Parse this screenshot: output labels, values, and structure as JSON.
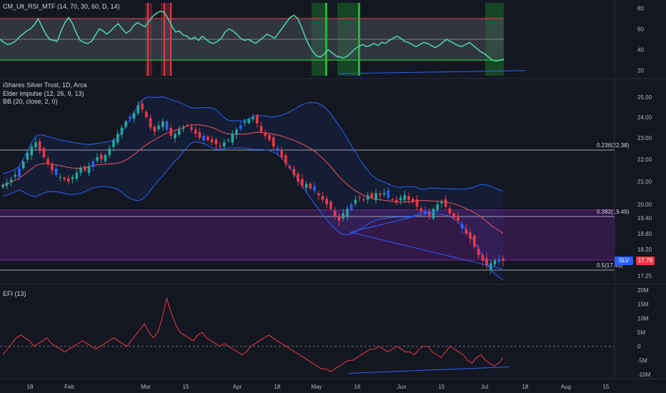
{
  "chart_data": [
    {
      "type": "line",
      "title": "CM_Ult_RSI_MTF (14, 70, 30, 60, D, 14)",
      "y_ticks": [
        "80",
        "60",
        "40",
        "20"
      ],
      "ylim": [
        15,
        85
      ],
      "bands": {
        "upper": 70,
        "middle": 50,
        "lower": 30
      },
      "colors": {
        "rsi": "#4dd0a5",
        "upper": "#f23645",
        "lower": "#1fc52f",
        "band_fill": "#4a4e5a"
      },
      "values": [
        50,
        47,
        45,
        46,
        48,
        52,
        55,
        58,
        60,
        64,
        70,
        62,
        55,
        50,
        49,
        48,
        58,
        66,
        71,
        65,
        56,
        49,
        47,
        46,
        48,
        54,
        60,
        58,
        55,
        58,
        62,
        65,
        60,
        56,
        58,
        63,
        66,
        64,
        62,
        67,
        72,
        75,
        77,
        76,
        70,
        63,
        57,
        58,
        54,
        53,
        50,
        52,
        49,
        53,
        50,
        47,
        46,
        48,
        51,
        57,
        60,
        58,
        55,
        51,
        49,
        50,
        48,
        46,
        49,
        52,
        55,
        53,
        51,
        56,
        61,
        66,
        71,
        73,
        70,
        62,
        52,
        44,
        38,
        34,
        33,
        36,
        40,
        37,
        34,
        33,
        32,
        34,
        37,
        41,
        43,
        45,
        43,
        44,
        46,
        44,
        47,
        46,
        49,
        51,
        53,
        51,
        48,
        47,
        45,
        43,
        45,
        47,
        46,
        44,
        42,
        44,
        47,
        50,
        48,
        46,
        44,
        43,
        45,
        47,
        44,
        41,
        38,
        36,
        33,
        30,
        29,
        30,
        31
      ]
    },
    {
      "type": "bar",
      "title": "iShares Silver Trust, 1D, Arca",
      "legend": [
        "Elder Impulse (12, 26, 9, 13)",
        "BB (20, close, 2, 0)"
      ],
      "y_ticks": [
        "25.00",
        "24.00",
        "23.00",
        "22.00",
        "21.00",
        "20.00",
        "19.40",
        "18.80",
        "18.20",
        "17.25"
      ],
      "fib_levels": [
        {
          "label": "0.236(22.38)",
          "value": 22.38
        },
        {
          "label": "0.382(19.49)",
          "value": 19.49
        },
        {
          "label": "0.5(17.43)",
          "value": 17.43
        }
      ],
      "last_price_symbol": "SLV",
      "last_price_label": "17.79",
      "colors": {
        "up": "#26a69a",
        "down": "#f23645",
        "neutral": "#2962ff",
        "bb": "#2962ff",
        "basis": "#f7525f",
        "zone": "#7b1fa2"
      },
      "closes": [
        20.85,
        20.95,
        21.1,
        21.3,
        21.6,
        21.9,
        22.3,
        22.6,
        22.8,
        22.4,
        22.1,
        21.8,
        21.5,
        21.3,
        21.2,
        21.1,
        21.0,
        21.2,
        21.4,
        21.6,
        21.5,
        21.7,
        21.9,
        22.1,
        22.0,
        22.2,
        22.5,
        22.9,
        23.2,
        23.5,
        23.8,
        24.0,
        24.2,
        24.6,
        24.4,
        24.0,
        23.5,
        23.3,
        23.6,
        23.8,
        23.4,
        23.1,
        23.2,
        23.4,
        23.5,
        23.6,
        23.4,
        23.2,
        23.0,
        23.1,
        22.9,
        22.8,
        22.7,
        22.6,
        22.8,
        22.9,
        23.2,
        23.4,
        23.6,
        23.8,
        23.9,
        24.0,
        23.7,
        23.3,
        23.1,
        22.9,
        22.6,
        22.4,
        22.1,
        21.8,
        21.6,
        21.3,
        21.0,
        20.8,
        20.9,
        20.7,
        20.6,
        20.4,
        20.2,
        20.0,
        19.8,
        19.5,
        19.3,
        19.6,
        19.8,
        20.0,
        20.2,
        20.3,
        20.2,
        20.4,
        20.3,
        20.5,
        20.4,
        20.5,
        20.3,
        20.2,
        20.1,
        20.3,
        20.4,
        20.2,
        20.1,
        19.9,
        19.7,
        19.6,
        19.5,
        19.8,
        20.0,
        20.1,
        19.9,
        19.6,
        19.4,
        19.3,
        19.0,
        18.8,
        18.6,
        18.3,
        18.0,
        17.8,
        17.6,
        17.7,
        17.8,
        17.75,
        17.79
      ]
    },
    {
      "type": "line",
      "title": "EFI (13)",
      "y_ticks": [
        "20M",
        "15M",
        "10M",
        "5M",
        "0",
        "-5M",
        "-10M"
      ],
      "ylim": [
        -11,
        21
      ],
      "colors": {
        "efi": "#f23645",
        "zero": "#787b86",
        "trend": "#2962ff"
      },
      "values": [
        -3,
        -1,
        1,
        3,
        4,
        3,
        2,
        0,
        1,
        2,
        3,
        1,
        0,
        -1,
        -2,
        -1,
        0,
        1,
        2,
        1,
        0,
        -1,
        0,
        1,
        2,
        3,
        2,
        1,
        0,
        2,
        4,
        6,
        8,
        5,
        3,
        5,
        10,
        17,
        12,
        8,
        5,
        4,
        3,
        2,
        4,
        5,
        3,
        2,
        1,
        0,
        1,
        0,
        -1,
        -2,
        -3,
        -2,
        0,
        1,
        2,
        3,
        4,
        3,
        2,
        1,
        0,
        -1,
        -2,
        -3,
        -4,
        -5,
        -6,
        -7,
        -8,
        -8,
        -9,
        -8,
        -7,
        -6,
        -5,
        -5,
        -4,
        -3,
        -2,
        -1,
        -1,
        0,
        -1,
        -2,
        -1,
        0,
        -1,
        -2,
        -2,
        -3,
        -1,
        0,
        0,
        -2,
        -3,
        -4,
        -2,
        0,
        -1,
        -2,
        -3,
        -5,
        -6,
        -4,
        -3,
        -5,
        -6,
        -7,
        -6,
        -4
      ]
    }
  ],
  "x_axis": {
    "ticks": [
      "18",
      "Feb",
      "Mar",
      "15",
      "Apr",
      "18",
      "May",
      "16",
      "Jun",
      "15",
      "Jul",
      "18",
      "Aug",
      "15"
    ]
  }
}
